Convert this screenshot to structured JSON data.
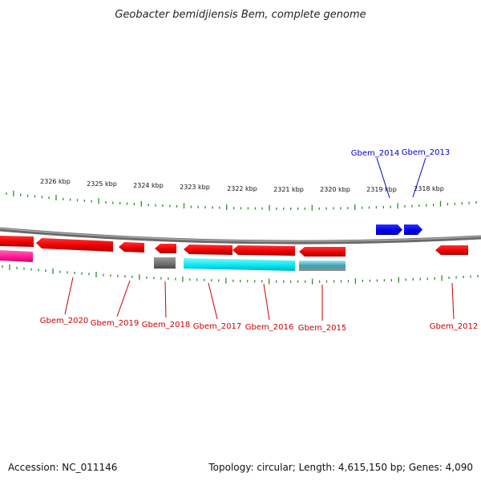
{
  "title": "Geobacter bemidjiensis Bem, complete genome",
  "footer": {
    "accession": "Accession: NC_011146",
    "summary": "Topology: circular; Length: 4,615,150 bp; Genes: 4,090"
  },
  "colors": {
    "forward_gene": "#0000ff",
    "reverse_gene": "#ff0000",
    "tick": "#2e8b2e",
    "backbone": "#808080",
    "cyan_feature": "#00e5ee",
    "gray_feature": "#6e6e6e",
    "magenta_feature": "#ff1493"
  },
  "scale": {
    "kbp_labels": [
      "2326 kbp",
      "2325 kbp",
      "2324 kbp",
      "2323 kbp",
      "2322 kbp",
      "2321 kbp",
      "2320 kbp",
      "2319 kbp",
      "2318 kbp"
    ]
  },
  "genes_top": [
    {
      "name": "Gbem_2014"
    },
    {
      "name": "Gbem_2013"
    }
  ],
  "genes_bottom": [
    {
      "name": "Gbem_2020"
    },
    {
      "name": "Gbem_2019"
    },
    {
      "name": "Gbem_2018"
    },
    {
      "name": "Gbem_2017"
    },
    {
      "name": "Gbem_2016"
    },
    {
      "name": "Gbem_2015"
    },
    {
      "name": "Gbem_2012"
    }
  ]
}
